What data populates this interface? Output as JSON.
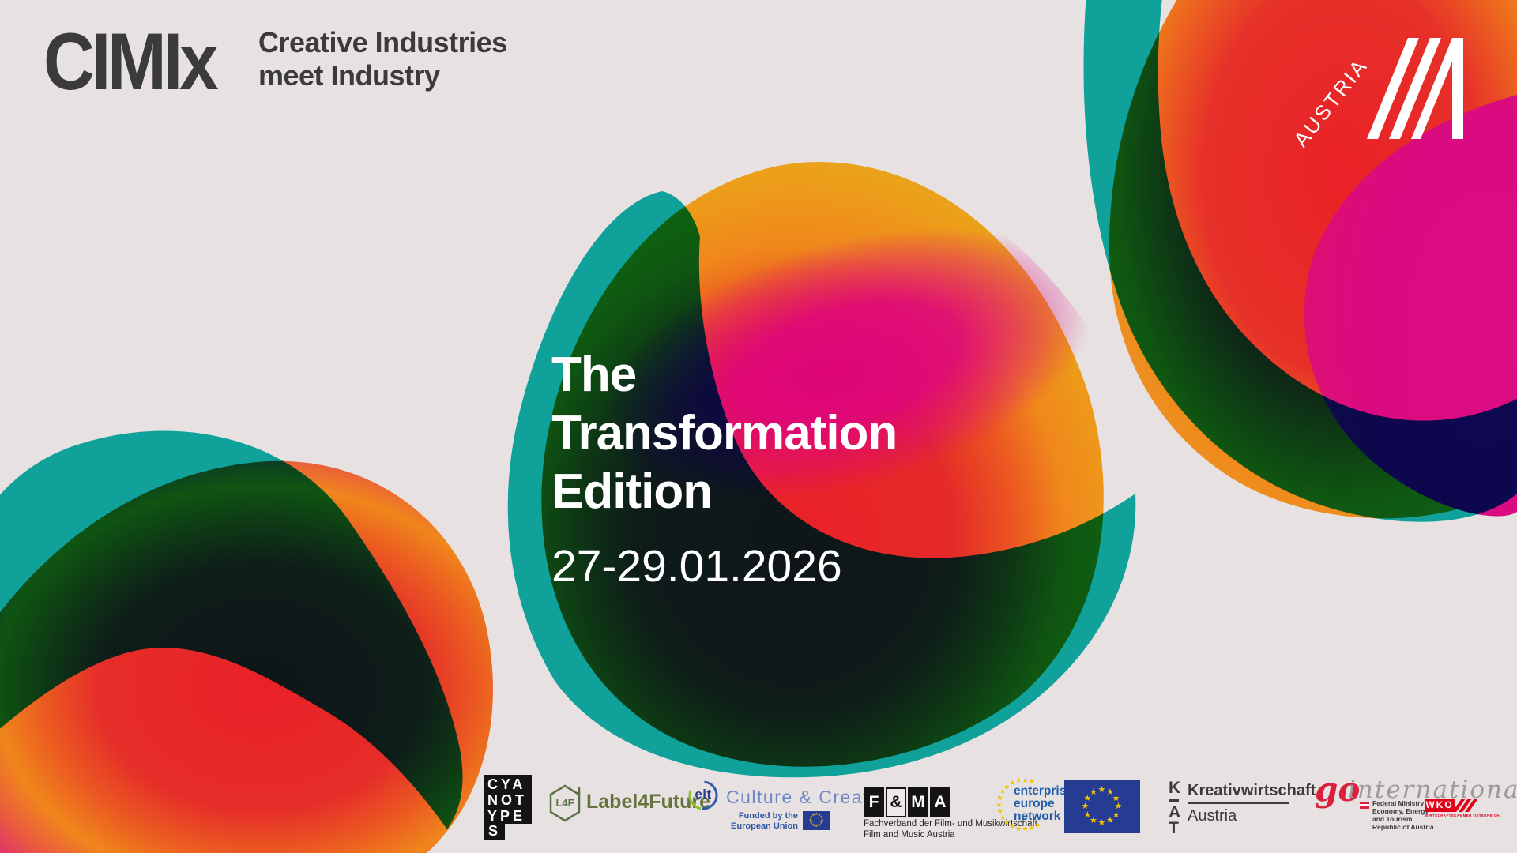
{
  "brand": {
    "logo": "CIMIx",
    "tagline1": "Creative Industries",
    "tagline2": "meet Industry"
  },
  "hero": {
    "line1": "The",
    "line2": "Transformation",
    "line3": "Edition",
    "date": "27-29.01.2026"
  },
  "austria": {
    "label": "AUSTRIA"
  },
  "partners": {
    "cyanotypes": {
      "row1": "CYA",
      "row2": "NOT",
      "row3": "YPE",
      "row4": "S"
    },
    "label4future": {
      "badge": "L4F",
      "label": "Label4Future"
    },
    "eit": {
      "circle": "eit",
      "label": "Culture & Creativity",
      "funded1": "Funded by the",
      "funded2": "European Union"
    },
    "fma": {
      "l1": "F",
      "l2": "&",
      "l3": "M",
      "l4": "A",
      "sub1": "Fachverband der Film- und Musikwirtschaft",
      "sub2": "Film and Music Austria"
    },
    "een": {
      "line1": "enterprise",
      "line2": "europe",
      "line3": "network"
    },
    "kat": {
      "k": "K",
      "a": "A",
      "t": "T",
      "label1": "Kreativwirtschaft",
      "label2": "Austria"
    },
    "go": {
      "script1": "go",
      "script2": "international",
      "min1": "Federal Ministry",
      "min2": "Economy, Energy",
      "min3": "and Tourism",
      "min4": "Republic of Austria",
      "wko": "WKO",
      "wko_sub": "WIRTSCHAFTSKAMMER ÖSTERREICH"
    }
  },
  "colors": {
    "background": "#E8E1E1",
    "teal": "#0FA19A",
    "red": "#EA2127",
    "orange": "#F0871C",
    "magenta": "#DA0A80",
    "yellow": "#E0A91F",
    "dark_text": "#3B3B3A",
    "eu_blue": "#253C92",
    "star_gold": "#F3C300",
    "l4f_green": "#5C7147",
    "eit_blue": "#2A3B8F",
    "een_blue": "#1F5FA9",
    "wko_red": "#E3001B"
  },
  "icons": {
    "star_char": "★"
  }
}
